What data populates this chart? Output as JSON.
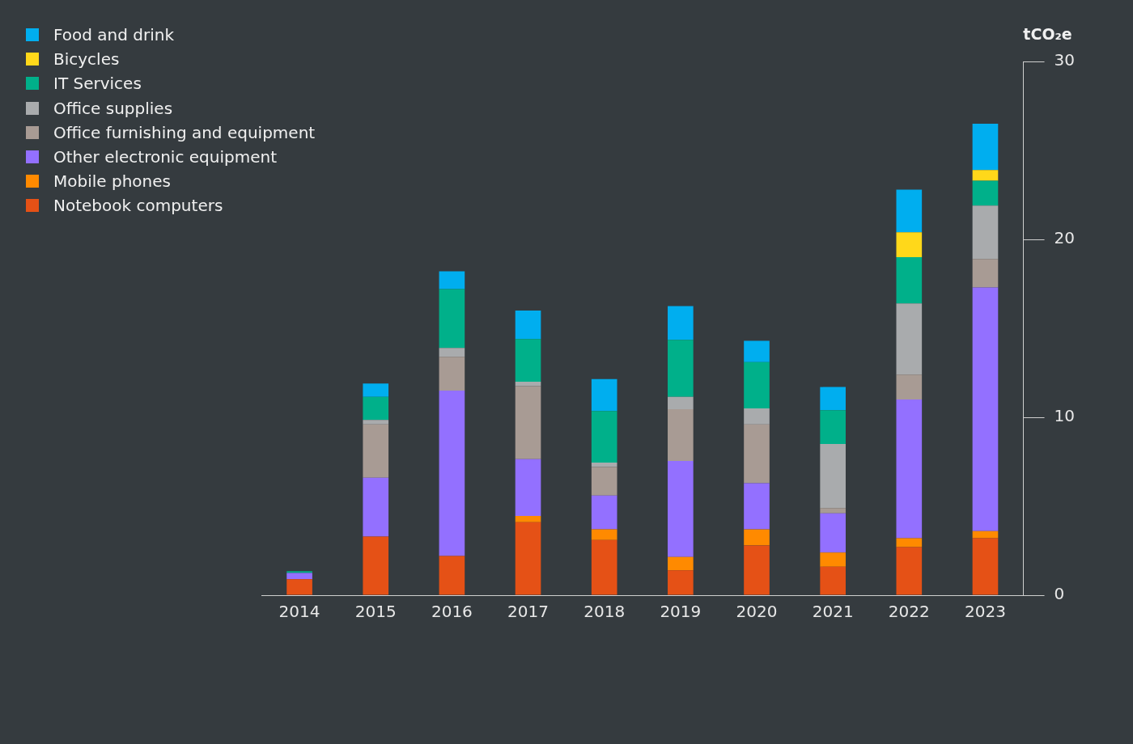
{
  "chart_data": {
    "type": "bar",
    "stacked": true,
    "ylabel": "tCO₂e",
    "legend": "top left",
    "grid": false,
    "categories": [
      "2014",
      "2015",
      "2016",
      "2017",
      "2018",
      "2019",
      "2020",
      "2021",
      "2022",
      "2023"
    ],
    "ylim": [
      0,
      30
    ],
    "yticks": [
      0,
      10,
      20,
      30
    ],
    "series": [
      {
        "name": "Notebook computers",
        "color": "#e55116",
        "values": [
          0.9,
          3.3,
          2.2,
          4.1,
          3.1,
          1.4,
          2.8,
          1.6,
          2.7,
          3.2
        ]
      },
      {
        "name": "Mobile phones",
        "color": "#ff8a00",
        "values": [
          0,
          0,
          0,
          0.35,
          0.6,
          0.75,
          0.9,
          0.8,
          0.5,
          0.4
        ]
      },
      {
        "name": "Other electronic equipment",
        "color": "#9370ff",
        "values": [
          0.35,
          3.3,
          9.3,
          3.2,
          1.9,
          5.4,
          2.6,
          2.2,
          7.8,
          13.7
        ]
      },
      {
        "name": "Office furnishing and equipment",
        "color": "#a89b94",
        "values": [
          0,
          3.0,
          1.9,
          4.1,
          1.6,
          2.9,
          3.3,
          0.3,
          1.4,
          1.6
        ]
      },
      {
        "name": "Office supplies",
        "color": "#a9abad",
        "values": [
          0,
          0.25,
          0.5,
          0.25,
          0.25,
          0.7,
          0.9,
          3.6,
          4.0,
          3.0
        ]
      },
      {
        "name": "IT Services",
        "color": "#00b08a",
        "values": [
          0.1,
          1.3,
          3.3,
          2.4,
          2.9,
          3.2,
          2.6,
          1.9,
          2.6,
          1.4
        ]
      },
      {
        "name": "Bicycles",
        "color": "#ffd81a",
        "values": [
          0,
          0,
          0,
          0,
          0,
          0,
          0,
          0,
          1.4,
          0.6
        ]
      },
      {
        "name": "Food and drink",
        "color": "#00aeef",
        "values": [
          0,
          0.75,
          1.0,
          1.6,
          1.8,
          1.9,
          1.2,
          1.3,
          2.4,
          2.6
        ]
      }
    ]
  }
}
